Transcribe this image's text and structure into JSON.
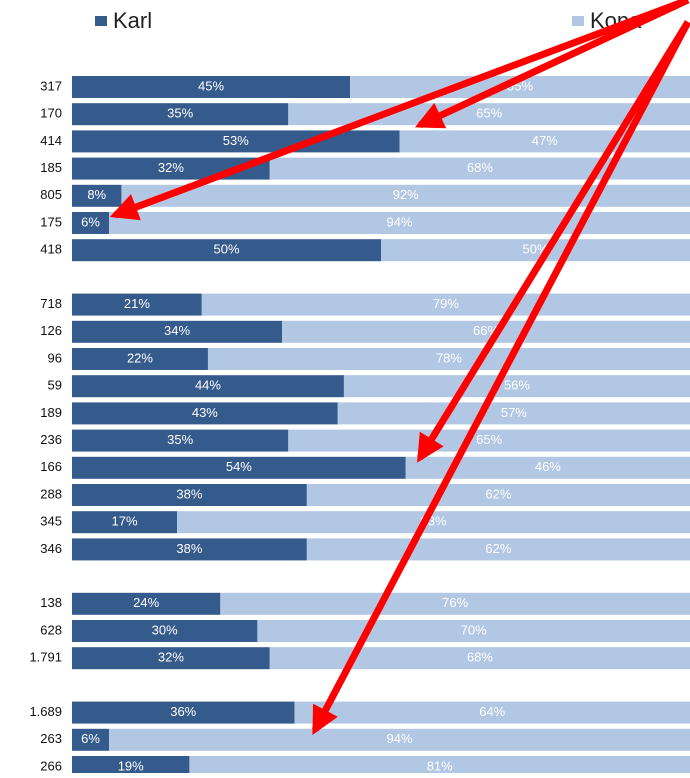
{
  "chart_data": {
    "type": "stacked_bar_horizontal",
    "categories": [
      "317",
      "170",
      "414",
      "185",
      "805",
      "175",
      "418",
      null,
      "718",
      "126",
      "96",
      "59",
      "189",
      "236",
      "166",
      "288",
      "345",
      "346",
      null,
      "138",
      "628",
      "1.791",
      null,
      "1.689",
      "263",
      "266"
    ],
    "series": [
      {
        "name": "Karl",
        "color": "#355a8c",
        "values": [
          45,
          35,
          53,
          32,
          8,
          6,
          50,
          null,
          21,
          34,
          22,
          44,
          43,
          35,
          54,
          38,
          17,
          38,
          null,
          24,
          30,
          32,
          null,
          36,
          6,
          19
        ],
        "value_labels": [
          "45%",
          "35%",
          "53%",
          "32%",
          "8%",
          "6%",
          "50%",
          null,
          "21%",
          "34%",
          "22%",
          "44%",
          "43%",
          "35%",
          "54%",
          "38%",
          "17%",
          "38%",
          null,
          "24%",
          "30%",
          "32%",
          null,
          "36%",
          "6%",
          "19%"
        ]
      },
      {
        "name": "Kona",
        "color": "#b2c7e3",
        "values": [
          55,
          65,
          47,
          68,
          92,
          94,
          50,
          null,
          79,
          66,
          78,
          56,
          57,
          65,
          46,
          62,
          83,
          62,
          null,
          76,
          70,
          68,
          null,
          64,
          94,
          81
        ],
        "value_labels": [
          "55%",
          "65%",
          "47%",
          "68%",
          "92%",
          "94%",
          "50%",
          null,
          "79%",
          "66%",
          "78%",
          "56%",
          "57%",
          "65%",
          "46%",
          "62%",
          "83%",
          "62%",
          null,
          "76%",
          "70%",
          "68%",
          null,
          "64%",
          "94%",
          "81%"
        ]
      }
    ],
    "xlim": [
      0,
      100
    ]
  }
}
